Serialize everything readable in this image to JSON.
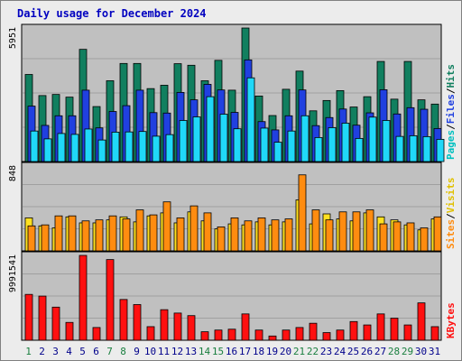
{
  "chart_data": {
    "type": "bar",
    "title": "Daily usage for December 2024",
    "categories": [
      "1",
      "2",
      "3",
      "4",
      "5",
      "6",
      "7",
      "8",
      "9",
      "10",
      "11",
      "12",
      "13",
      "14",
      "15",
      "16",
      "17",
      "18",
      "19",
      "20",
      "21",
      "22",
      "23",
      "24",
      "25",
      "26",
      "27",
      "28",
      "29",
      "30",
      "31"
    ],
    "weekend_days": [
      "1",
      "7",
      "8",
      "14",
      "15",
      "21",
      "22",
      "28",
      "29"
    ],
    "panels": [
      {
        "name": "top",
        "ymax_label": "5951",
        "ymax": 5951,
        "series": [
          {
            "name": "Hits",
            "color": "#117f5f",
            "values": [
              3880,
              2940,
              2990,
              2870,
              5000,
              2450,
              3600,
              4370,
              4370,
              3250,
              3400,
              4360,
              4290,
              3600,
              4510,
              3180,
              5950,
              2920,
              2050,
              3220,
              4030,
              2260,
              2720,
              3160,
              2430,
              2890,
              4460,
              2780,
              4460,
              2750,
              2560
            ]
          },
          {
            "name": "Files",
            "color": "#2040e0",
            "values": [
              2470,
              1610,
              2040,
              2040,
              3180,
              1500,
              2230,
              2490,
              3180,
              2180,
              2160,
              3080,
              2750,
              3440,
              3190,
              2190,
              4530,
              1780,
              1410,
              2040,
              3190,
              1600,
              1960,
              2340,
              1620,
              2170,
              3200,
              2120,
              2400,
              2330,
              1470
            ]
          },
          {
            "name": "Pages",
            "color": "#20d8f8",
            "values": [
              1360,
              1010,
              1250,
              1210,
              1450,
              960,
              1310,
              1320,
              1340,
              1130,
              1200,
              1830,
              1990,
              2890,
              2110,
              1460,
              3730,
              1490,
              860,
              1360,
              2040,
              1070,
              1510,
              1710,
              1030,
              1980,
              1830,
              1120,
              1150,
              1110,
              990
            ]
          }
        ]
      },
      {
        "name": "middle",
        "ymax_label": "848",
        "ymax": 848,
        "series": [
          {
            "name": "Visits",
            "color": "#ffe020",
            "values": [
              330,
              250,
              230,
              340,
              280,
              280,
              310,
              340,
              290,
              350,
              380,
              280,
              390,
              300,
              220,
              270,
              260,
              290,
              260,
              290,
              510,
              270,
              370,
              320,
              300,
              380,
              340,
              310,
              260,
              210,
              320
            ]
          },
          {
            "name": "Sites",
            "color": "#ff8c10",
            "values": [
              250,
              260,
              350,
              350,
              300,
              310,
              350,
              320,
              410,
              360,
              490,
              330,
              450,
              380,
              240,
              330,
              300,
              330,
              310,
              320,
              760,
              410,
              310,
              390,
              390,
              410,
              270,
              290,
              280,
              230,
              340
            ]
          }
        ]
      },
      {
        "name": "bottom",
        "ymax_label": "9991541",
        "ymax": 9991541,
        "series": [
          {
            "name": "KBytes",
            "color": "#ff1010",
            "values": [
              5400000,
              5200000,
              3900000,
              2100000,
              9990000,
              1500000,
              9500000,
              4800000,
              4200000,
              1600000,
              3600000,
              3200000,
              2900000,
              1000000,
              1200000,
              1300000,
              3100000,
              1200000,
              500000,
              1200000,
              1500000,
              2000000,
              900000,
              1200000,
              2200000,
              1800000,
              3100000,
              2600000,
              1800000,
              4400000,
              1600000
            ]
          }
        ]
      }
    ],
    "legend": {
      "top": [
        {
          "text": "Pages",
          "color": "#00c0c0"
        },
        {
          "text": "/",
          "color": "#000000"
        },
        {
          "text": "Files",
          "color": "#2040e0"
        },
        {
          "text": "/",
          "color": "#000000"
        },
        {
          "text": "Hits",
          "color": "#117f5f"
        }
      ],
      "middle": [
        {
          "text": "Sites",
          "color": "#ff8c10"
        },
        {
          "text": "/",
          "color": "#000000"
        },
        {
          "text": "Visits",
          "color": "#e0c000"
        }
      ],
      "bottom": [
        {
          "text": "KBytes",
          "color": "#ff1010"
        }
      ]
    },
    "colors": {
      "background": "#ececec",
      "plot_bg": "#c0c0c0",
      "grid": "#a0a0a0",
      "weekday_label": "#00008b",
      "weekend_label": "#1a7f3f",
      "title": "#0000c0"
    }
  }
}
